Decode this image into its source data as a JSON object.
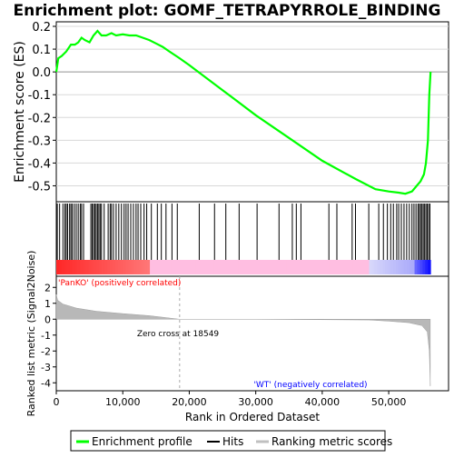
{
  "title": "Enrichment plot: GOMF_TETRAPYRROLE_BINDING",
  "chart_data": {
    "type": "line",
    "title": "Enrichment plot: GOMF_TETRAPYRROLE_BINDING",
    "es_panel": {
      "ylabel": "Enrichment score (ES)",
      "ylim": [
        -0.57,
        0.22
      ],
      "yticks": [
        "0.2",
        "0.1",
        "0.0",
        "-0.1",
        "-0.2",
        "-0.3",
        "-0.4",
        "-0.5"
      ],
      "ytick_values": [
        0.2,
        0.1,
        0.0,
        -0.1,
        -0.2,
        -0.3,
        -0.4,
        -0.5
      ],
      "series": [
        {
          "name": "Enrichment profile",
          "color": "#00ff00",
          "x": [
            0,
            300,
            800,
            1500,
            2200,
            2800,
            3300,
            3800,
            4300,
            5000,
            5600,
            6200,
            6800,
            7500,
            8300,
            9000,
            10000,
            11000,
            12000,
            13000,
            14000,
            15000,
            16000,
            17000,
            18549,
            20000,
            25000,
            30000,
            35000,
            40000,
            45000,
            48000,
            50000,
            51500,
            52500,
            53500,
            54200,
            54800,
            55300,
            55600,
            55900,
            56100,
            56300
          ],
          "y": [
            0.0,
            0.06,
            0.07,
            0.09,
            0.12,
            0.12,
            0.13,
            0.15,
            0.14,
            0.13,
            0.16,
            0.18,
            0.16,
            0.16,
            0.17,
            0.16,
            0.165,
            0.16,
            0.16,
            0.15,
            0.14,
            0.125,
            0.11,
            0.09,
            0.06,
            0.03,
            -0.08,
            -0.19,
            -0.29,
            -0.39,
            -0.47,
            -0.515,
            -0.525,
            -0.53,
            -0.535,
            -0.525,
            -0.5,
            -0.48,
            -0.45,
            -0.4,
            -0.3,
            -0.1,
            0.0
          ]
        }
      ]
    },
    "hits": {
      "name": "Hits",
      "positions": [
        150,
        500,
        1000,
        1300,
        1500,
        1700,
        2000,
        2200,
        2400,
        2700,
        3000,
        3300,
        3600,
        3800,
        4100,
        5200,
        5400,
        5600,
        5800,
        6000,
        6200,
        6400,
        6600,
        6800,
        7200,
        7800,
        8100,
        8300,
        8600,
        9000,
        9400,
        9800,
        10200,
        10500,
        10800,
        11200,
        11600,
        12000,
        12300,
        12700,
        13200,
        13600,
        14300,
        15200,
        15800,
        16500,
        17400,
        18200,
        21500,
        23800,
        25500,
        27500,
        30200,
        33500,
        35500,
        36100,
        36800,
        41000,
        42200,
        44500,
        45000,
        47000,
        48500,
        49200,
        49800,
        50300,
        50700,
        51200,
        51500,
        51900,
        52300,
        52700,
        53100,
        53500,
        53800,
        54100,
        54400,
        54600,
        54800,
        55000,
        55200,
        55400,
        55600,
        55800,
        56000,
        56200
      ]
    },
    "ranking_panel": {
      "name": "Ranking metric scores",
      "ylabel": "Ranked list metric (Signal2Noise)",
      "ylim": [
        -4.5,
        2.7
      ],
      "yticks": [
        "2",
        "1",
        "0",
        "-1",
        "-2",
        "-3",
        "-4"
      ],
      "ytick_values": [
        2,
        1,
        0,
        -1,
        -2,
        -3,
        -4
      ],
      "x": [
        0,
        200,
        1000,
        3000,
        6000,
        10000,
        14000,
        18549,
        30000,
        47000,
        50000,
        53000,
        55000,
        55800,
        56100,
        56250
      ],
      "y": [
        1.55,
        1.2,
        0.95,
        0.7,
        0.5,
        0.35,
        0.22,
        0.0,
        0.0,
        -0.05,
        -0.12,
        -0.22,
        -0.4,
        -0.8,
        -2.0,
        -4.2
      ],
      "zero_cross_label": "Zero cross at 18549",
      "zero_cross": 18549,
      "positive_label": "'PanKO' (positively correlated)",
      "negative_label": "'WT' (negatively correlated)"
    },
    "xlabel": "Rank in Ordered Dataset",
    "xlim": [
      0,
      59000
    ],
    "xticks": [
      "0",
      "10,000",
      "20,000",
      "30,000",
      "40,000",
      "50,000"
    ],
    "xtick_values": [
      0,
      10000,
      20000,
      30000,
      40000,
      50000
    ],
    "total_genes": 56300,
    "legend": {
      "placement": "bottom",
      "items": [
        "Enrichment profile",
        "Hits",
        "Ranking metric scores"
      ]
    },
    "colors": {
      "profile": "#00ff00",
      "hits": "#000000",
      "positive": "#ff0000",
      "negative": "#0000ff",
      "ranking": "#c0c0c0",
      "positive_text": "#ff0000",
      "negative_text": "#0000ff"
    }
  }
}
